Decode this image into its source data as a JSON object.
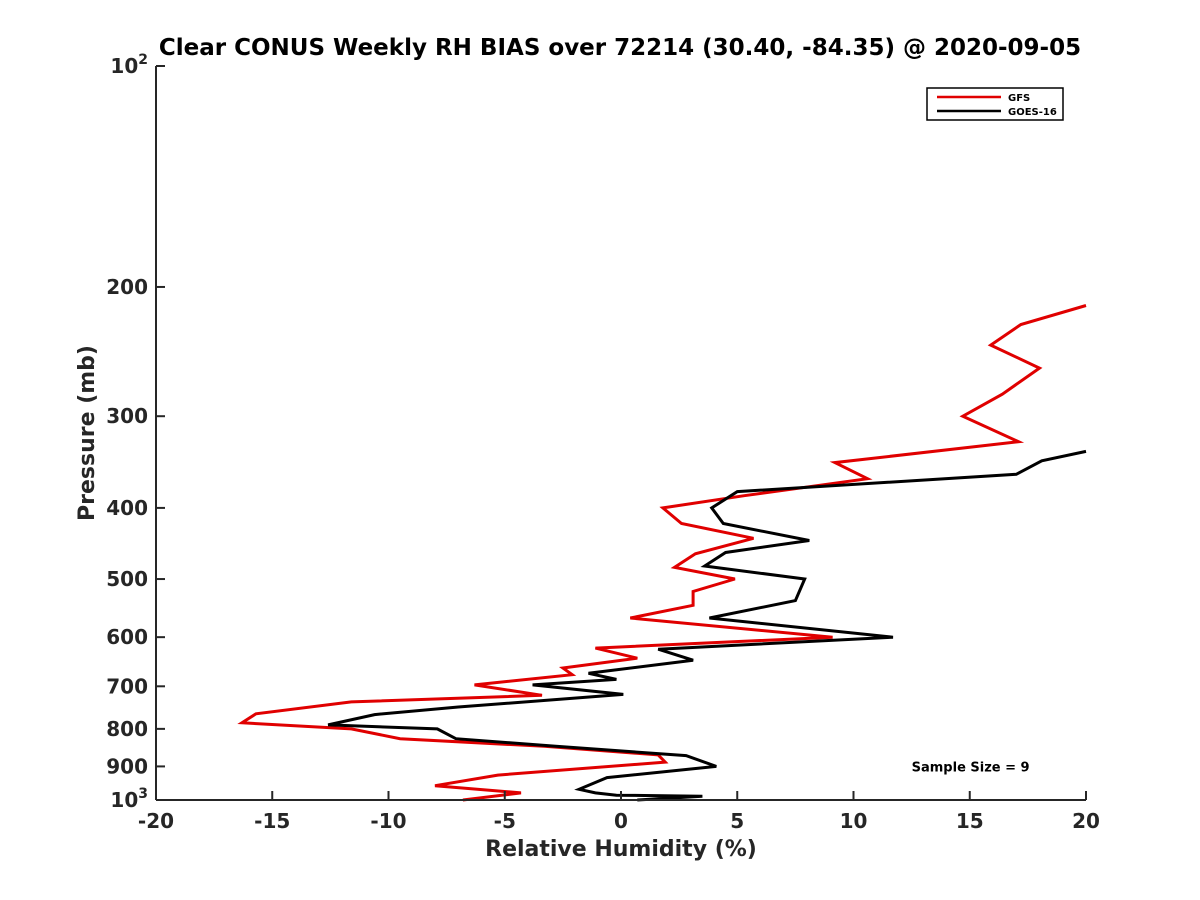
{
  "chart_data": {
    "type": "line",
    "title": "Clear CONUS Weekly RH BIAS over 72214 (30.40, -84.35) @ 2020-09-05",
    "xlabel": "Relative Humidity (%)",
    "ylabel": "Pressure (mb)",
    "xlim": [
      -20,
      20
    ],
    "ylim": [
      100,
      1000
    ],
    "yscale": "log",
    "y_reversed": true,
    "grid": false,
    "legend_position": "top-right",
    "x_ticks": [
      -20,
      -15,
      -10,
      -5,
      0,
      5,
      10,
      15,
      20
    ],
    "x_tick_labels": [
      "-20",
      "-15",
      "-10",
      "-5",
      "0",
      "5",
      "10",
      "15",
      "20"
    ],
    "y_ticks": [
      100,
      200,
      300,
      400,
      500,
      600,
      700,
      800,
      900,
      1000
    ],
    "y_tick_labels": [
      {
        "base": "10",
        "exp": "2"
      },
      {
        "base": "200"
      },
      {
        "base": "300"
      },
      {
        "base": "400"
      },
      {
        "base": "500"
      },
      {
        "base": "600"
      },
      {
        "base": "700"
      },
      {
        "base": "800"
      },
      {
        "base": "900"
      },
      {
        "base": "10",
        "exp": "3"
      }
    ],
    "series": [
      {
        "name": "GFS",
        "color": "#e00000",
        "points": [
          [
            20.0,
            212
          ],
          [
            17.2,
            225
          ],
          [
            15.9,
            240
          ],
          [
            18.0,
            258
          ],
          [
            16.4,
            280
          ],
          [
            14.7,
            300
          ],
          [
            17.1,
            325
          ],
          [
            9.2,
            347
          ],
          [
            10.6,
            365
          ],
          [
            5.3,
            385
          ],
          [
            1.8,
            400
          ],
          [
            2.6,
            420
          ],
          [
            5.7,
            440
          ],
          [
            3.2,
            462
          ],
          [
            2.3,
            482
          ],
          [
            4.9,
            500
          ],
          [
            3.1,
            520
          ],
          [
            3.1,
            543
          ],
          [
            0.4,
            565
          ],
          [
            9.1,
            600
          ],
          [
            -1.1,
            621
          ],
          [
            0.7,
            641
          ],
          [
            -2.5,
            661
          ],
          [
            -2.1,
            675
          ],
          [
            -6.3,
            697
          ],
          [
            -3.4,
            720
          ],
          [
            -11.6,
            735
          ],
          [
            -15.7,
            763
          ],
          [
            -16.3,
            785
          ],
          [
            -11.6,
            800
          ],
          [
            -9.5,
            825
          ],
          [
            -3.3,
            845
          ],
          [
            1.6,
            868
          ],
          [
            1.9,
            888
          ],
          [
            -5.3,
            925
          ],
          [
            -8.0,
            956
          ],
          [
            -4.3,
            978
          ],
          [
            -6.8,
            1000
          ]
        ]
      },
      {
        "name": "GOES-16",
        "color": "#000000",
        "points": [
          [
            20.0,
            335
          ],
          [
            18.1,
            345
          ],
          [
            17.0,
            360
          ],
          [
            5.0,
            380
          ],
          [
            3.9,
            400
          ],
          [
            4.4,
            420
          ],
          [
            8.1,
            443
          ],
          [
            4.5,
            460
          ],
          [
            3.6,
            480
          ],
          [
            7.9,
            500
          ],
          [
            7.5,
            535
          ],
          [
            3.8,
            565
          ],
          [
            11.7,
            600
          ],
          [
            1.6,
            623
          ],
          [
            3.1,
            645
          ],
          [
            -1.4,
            672
          ],
          [
            -0.2,
            685
          ],
          [
            -3.8,
            697
          ],
          [
            0.1,
            718
          ],
          [
            -7.0,
            747
          ],
          [
            -10.6,
            765
          ],
          [
            -12.6,
            790
          ],
          [
            -7.9,
            800
          ],
          [
            -7.1,
            825
          ],
          [
            -2.8,
            845
          ],
          [
            2.8,
            870
          ],
          [
            4.1,
            900
          ],
          [
            -0.6,
            932
          ],
          [
            -1.8,
            967
          ],
          [
            -1.1,
            978
          ],
          [
            -0.2,
            985
          ],
          [
            3.5,
            988
          ],
          [
            0.7,
            1000
          ]
        ]
      }
    ],
    "annotations": [
      {
        "text": "Sample Size = 9",
        "x": 12.5,
        "y": 900
      }
    ]
  }
}
